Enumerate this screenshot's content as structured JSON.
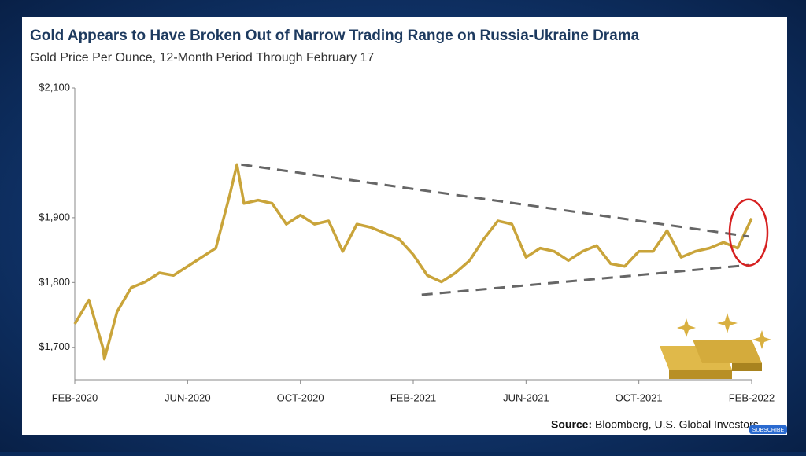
{
  "chart_data": {
    "type": "line",
    "title": "Gold Appears to Have Broken Out of Narrow Trading Range on Russia-Ukraine Drama",
    "subtitle": "Gold Price Per Ounce, 12-Month Period Through February 17",
    "x": [
      0,
      0.5,
      1,
      1.05,
      1.5,
      2,
      2.5,
      3,
      3.5,
      4,
      4.5,
      5,
      5.5,
      5.75,
      6,
      6.5,
      7,
      7.5,
      8,
      8.5,
      9,
      9.5,
      10,
      10.5,
      11,
      11.5,
      12,
      12.5,
      13,
      13.5,
      14,
      14.5,
      15,
      15.5,
      16,
      16.5,
      17,
      17.5,
      18,
      18.5,
      19,
      19.5,
      20,
      20.5,
      21,
      21.5,
      22,
      22.5,
      23,
      23.5,
      24
    ],
    "series": [
      {
        "name": "Gold",
        "color": "#c9a43a",
        "values": [
          1736,
          1773,
          1699,
          1682,
          1755,
          1792,
          1801,
          1815,
          1811,
          1825,
          1839,
          1853,
          1936,
          1982,
          1922,
          1927,
          1922,
          1890,
          1904,
          1890,
          1895,
          1848,
          1890,
          1885,
          1876,
          1867,
          1843,
          1811,
          1801,
          1815,
          1834,
          1867,
          1895,
          1890,
          1839,
          1853,
          1848,
          1834,
          1848,
          1857,
          1829,
          1825,
          1848,
          1848,
          1880,
          1839,
          1848,
          1853,
          1862,
          1853,
          1899
        ]
      }
    ],
    "trendlines": [
      {
        "x": [
          5.9,
          23.9
        ],
        "values": [
          1982,
          1871
        ],
        "color": "#666666"
      },
      {
        "x": [
          12.3,
          23.9
        ],
        "values": [
          1781,
          1827
        ],
        "color": "#666666"
      }
    ],
    "xlim": [
      0,
      24
    ],
    "xticks": [
      {
        "value": 0,
        "label": "FEB-2020"
      },
      {
        "value": 4,
        "label": "JUN-2020"
      },
      {
        "value": 8,
        "label": "OCT-2020"
      },
      {
        "value": 12,
        "label": "FEB-2021"
      },
      {
        "value": 16,
        "label": "JUN-2021"
      },
      {
        "value": 20,
        "label": "OCT-2021"
      },
      {
        "value": 24,
        "label": "FEB-2022"
      }
    ],
    "ylim": [
      1650,
      2100
    ],
    "yticks": [
      {
        "value": 1700,
        "label": "$1,700"
      },
      {
        "value": 1800,
        "label": "$1,800"
      },
      {
        "value": 1900,
        "label": "$1,900"
      },
      {
        "value": 2100,
        "label": "$2,100"
      }
    ],
    "grid": false,
    "source_label": "Source:",
    "source": "Bloomberg, U.S. Global Investors"
  },
  "subscribe": "SUBSCRIBE"
}
